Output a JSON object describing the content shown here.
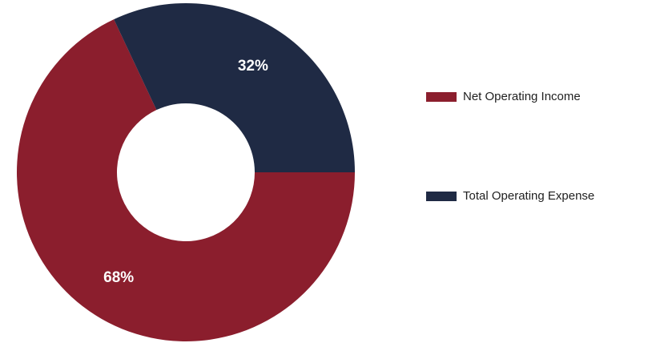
{
  "chart_data": {
    "type": "pie",
    "donut": true,
    "title": "",
    "categories": [
      "Net Operating Income",
      "Total Operating Expense"
    ],
    "values": [
      68,
      32
    ],
    "data_labels": [
      "68%",
      "32%"
    ],
    "colors": [
      "#8b1e2d",
      "#1f2a44"
    ],
    "legend": {
      "placement": "right",
      "entries": [
        "Net Operating Income",
        "Total Operating Expense"
      ]
    }
  }
}
